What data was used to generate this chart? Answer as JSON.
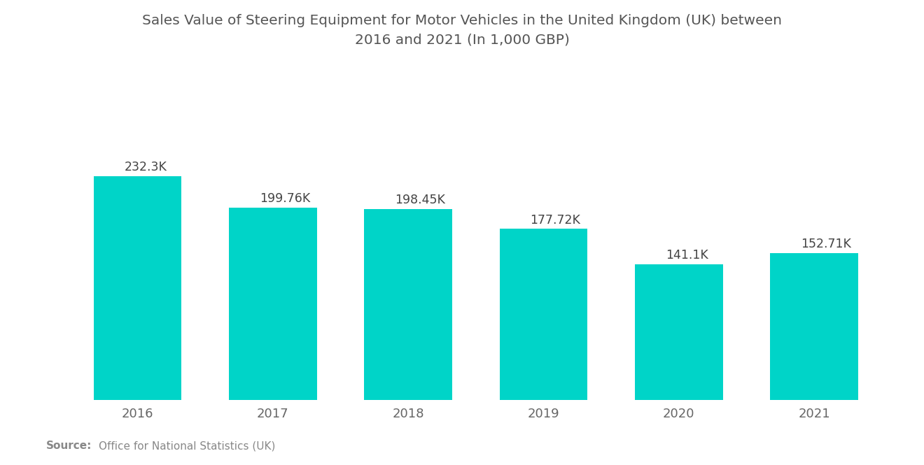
{
  "title_line1": "Sales Value of Steering Equipment for Motor Vehicles in the United Kingdom (UK) between",
  "title_line2": "2016 and 2021 (In 1,000 GBP)",
  "categories": [
    "2016",
    "2017",
    "2018",
    "2019",
    "2020",
    "2021"
  ],
  "values": [
    232.3,
    199.76,
    198.45,
    177.72,
    141.1,
    152.71
  ],
  "labels": [
    "232.3K",
    "199.76K",
    "198.45K",
    "177.72K",
    "141.1K",
    "152.71K"
  ],
  "bar_color": "#00D4C8",
  "background_color": "#ffffff",
  "source_bold": "Source:",
  "source_text": "  Office for National Statistics (UK)",
  "title_color": "#555555",
  "label_color": "#444444",
  "tick_color": "#666666",
  "source_color": "#888888",
  "ylim": [
    0,
    280
  ],
  "title_fontsize": 14.5,
  "label_fontsize": 12.5,
  "tick_fontsize": 13,
  "source_fontsize": 11
}
